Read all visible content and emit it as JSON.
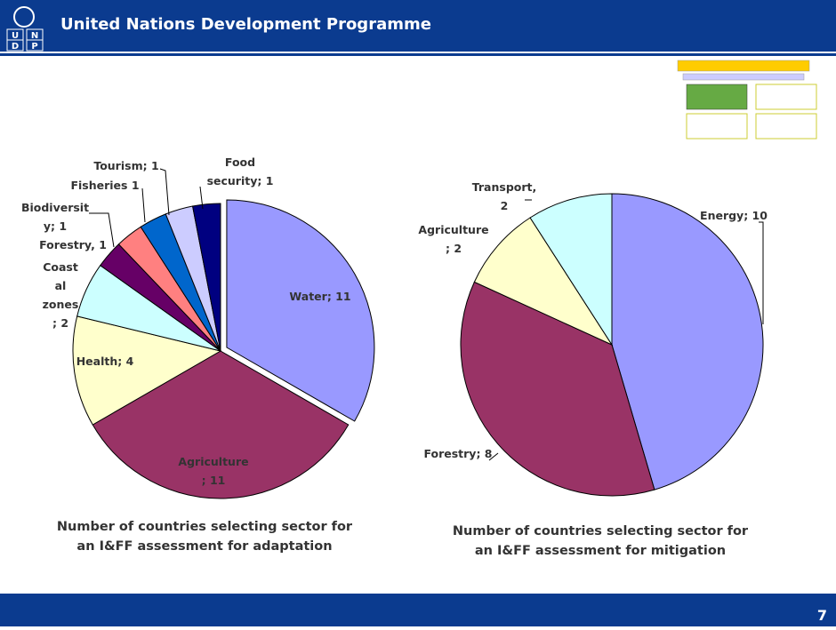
{
  "header": {
    "title": "United Nations Development Programme",
    "logo": [
      "U",
      "N",
      "D",
      "P"
    ]
  },
  "page_number": "7",
  "chart_data": [
    {
      "type": "pie",
      "title": "Number of countries selecting sector for\nan I&FF assessment for adaptation",
      "values": [
        11,
        11,
        4,
        2,
        1,
        1,
        1,
        1,
        1
      ],
      "value_labels": [
        "Water; 11",
        "Agriculture\n; 11",
        "Health; 4",
        "Coast\nal\nzones\n; 2",
        "Forestry, 1",
        "Biodiversit\ny; 1",
        "Fisheries 1",
        "Tourism; 1",
        "Food\nsecurity; 1"
      ],
      "colors": [
        "#9999ff",
        "#993366",
        "#ffffcc",
        "#ccffff",
        "#660066",
        "#ff8080",
        "#0066cc",
        "#ccccff",
        "#000080"
      ],
      "exploded": [
        0
      ]
    },
    {
      "type": "pie",
      "title": "Number of countries selecting sector for\nan I&FF assessment for mitigation",
      "values": [
        10,
        8,
        2,
        2
      ],
      "value_labels": [
        "Energy; 10",
        "Forestry; 8",
        "Agriculture\n; 2",
        "Transport,\n2"
      ],
      "colors": [
        "#9999ff",
        "#993366",
        "#ffffcc",
        "#ccffff"
      ],
      "exploded": []
    }
  ]
}
